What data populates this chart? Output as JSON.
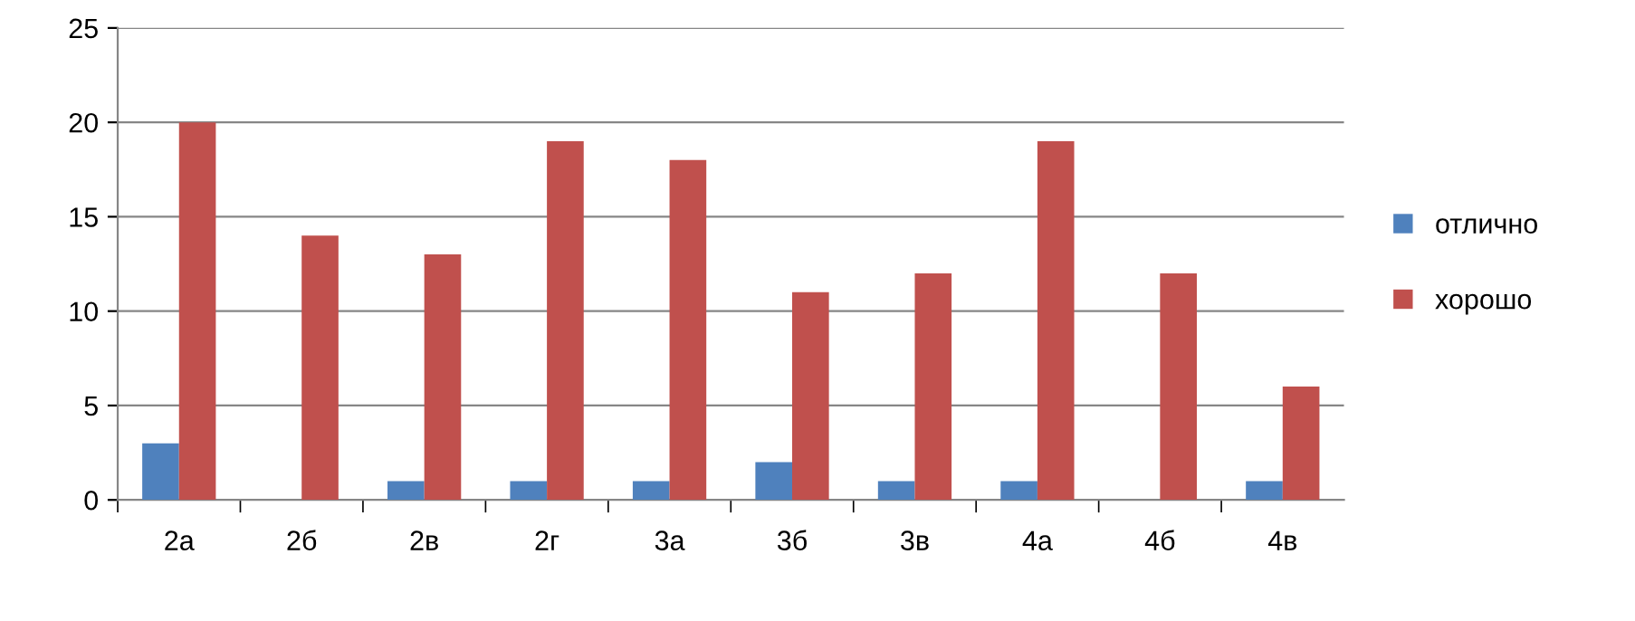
{
  "chart_data": {
    "type": "bar",
    "categories": [
      "2а",
      "2б",
      "2в",
      "2г",
      "3а",
      "3б",
      "3в",
      "4а",
      "4б",
      "4в"
    ],
    "series": [
      {
        "name": "отлично",
        "color": "#4f81bd",
        "values": [
          3,
          0,
          1,
          1,
          1,
          2,
          1,
          1,
          0,
          1
        ]
      },
      {
        "name": "хорошо",
        "color": "#c0504d",
        "values": [
          20,
          14,
          13,
          19,
          18,
          11,
          12,
          19,
          12,
          6
        ]
      }
    ],
    "ylim": [
      0,
      25
    ],
    "yticks": [
      0,
      5,
      10,
      15,
      20,
      25
    ],
    "grid": "y",
    "legend": "right"
  }
}
